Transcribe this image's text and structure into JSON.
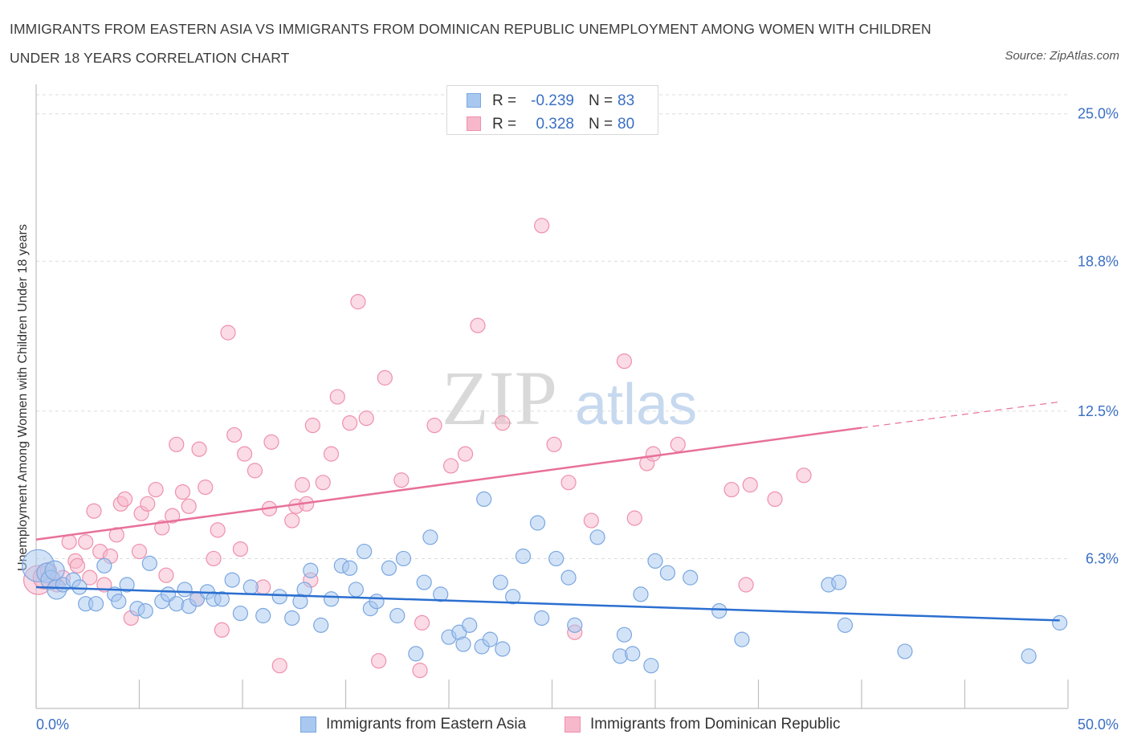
{
  "title": "IMMIGRANTS FROM EASTERN ASIA VS IMMIGRANTS FROM DOMINICAN REPUBLIC UNEMPLOYMENT AMONG WOMEN WITH CHILDREN UNDER 18 YEARS CORRELATION CHART",
  "source": "Source: ZipAtlas.com",
  "watermark": {
    "part1": "ZIP",
    "part2": "atlas"
  },
  "legend": {
    "r_label": "R =",
    "n_label": "N =",
    "rows": [
      {
        "r": "-0.239",
        "n": "83",
        "color": "#a8c8f0"
      },
      {
        "r": "0.328",
        "n": "80",
        "color": "#f7b8cb"
      }
    ]
  },
  "colors": {
    "blue_fill": "#a8c8f0",
    "blue_stroke": "#7aa7e0",
    "blue_line": "#2b6fd0",
    "pink_fill": "#f7b8cb",
    "pink_stroke": "#ef90ad",
    "pink_line": "#e8709a",
    "tick_text": "#3a6fc4"
  },
  "chart_data": {
    "type": "scatter",
    "title": "IMMIGRANTS FROM EASTERN ASIA VS IMMIGRANTS FROM DOMINICAN REPUBLIC UNEMPLOYMENT AMONG WOMEN WITH CHILDREN UNDER 18 YEARS CORRELATION CHART",
    "xlabel": "",
    "ylabel": "Unemployment Among Women with Children Under 18 years",
    "xlim": [
      0,
      50
    ],
    "ylim": [
      0,
      25.8
    ],
    "x_tick_labels": [
      "0.0%",
      "50.0%"
    ],
    "y_ticks": [
      {
        "value": 6.3,
        "label": "6.3%"
      },
      {
        "value": 12.5,
        "label": "12.5%"
      },
      {
        "value": 18.8,
        "label": "18.8%"
      },
      {
        "value": 25.0,
        "label": "25.0%"
      }
    ],
    "grid": "horizontal dashed",
    "legend_position": "top-center",
    "series": [
      {
        "name": "Immigrants from Eastern Asia",
        "R": -0.239,
        "N": 83,
        "trend": {
          "x": [
            0,
            49.6
          ],
          "y": [
            5.1,
            3.7
          ]
        },
        "points": [
          [
            0.1,
            6.0
          ],
          [
            0.5,
            5.7
          ],
          [
            0.7,
            5.4
          ],
          [
            0.9,
            5.8
          ],
          [
            1.0,
            5.0
          ],
          [
            1.3,
            5.2
          ],
          [
            1.8,
            5.4
          ],
          [
            2.1,
            5.1
          ],
          [
            2.4,
            4.4
          ],
          [
            2.9,
            4.4
          ],
          [
            3.3,
            6.0
          ],
          [
            3.8,
            4.8
          ],
          [
            4.0,
            4.5
          ],
          [
            4.4,
            5.2
          ],
          [
            4.9,
            4.2
          ],
          [
            5.3,
            4.1
          ],
          [
            5.5,
            6.1
          ],
          [
            6.1,
            4.5
          ],
          [
            6.4,
            4.8
          ],
          [
            6.8,
            4.4
          ],
          [
            7.2,
            5.0
          ],
          [
            7.4,
            4.3
          ],
          [
            7.8,
            4.6
          ],
          [
            8.3,
            4.9
          ],
          [
            8.6,
            4.6
          ],
          [
            9.0,
            4.6
          ],
          [
            9.5,
            5.4
          ],
          [
            9.9,
            4.0
          ],
          [
            10.4,
            5.1
          ],
          [
            11.0,
            3.9
          ],
          [
            11.8,
            4.7
          ],
          [
            12.4,
            3.8
          ],
          [
            12.8,
            4.5
          ],
          [
            13.0,
            5.0
          ],
          [
            13.3,
            5.8
          ],
          [
            13.8,
            3.5
          ],
          [
            14.3,
            4.6
          ],
          [
            14.8,
            6.0
          ],
          [
            15.2,
            5.9
          ],
          [
            15.5,
            5.0
          ],
          [
            15.9,
            6.6
          ],
          [
            16.2,
            4.2
          ],
          [
            16.5,
            4.5
          ],
          [
            17.1,
            5.9
          ],
          [
            17.5,
            3.9
          ],
          [
            17.8,
            6.3
          ],
          [
            18.4,
            2.3
          ],
          [
            18.8,
            5.3
          ],
          [
            19.1,
            7.2
          ],
          [
            19.6,
            4.8
          ],
          [
            20.0,
            3.0
          ],
          [
            20.5,
            3.2
          ],
          [
            20.7,
            2.7
          ],
          [
            21.0,
            3.5
          ],
          [
            21.6,
            2.6
          ],
          [
            22.0,
            2.9
          ],
          [
            22.5,
            5.3
          ],
          [
            22.6,
            2.5
          ],
          [
            23.1,
            4.7
          ],
          [
            23.6,
            6.4
          ],
          [
            24.3,
            7.8
          ],
          [
            24.5,
            3.8
          ],
          [
            25.2,
            6.3
          ],
          [
            25.8,
            5.5
          ],
          [
            26.1,
            3.5
          ],
          [
            27.2,
            7.2
          ],
          [
            28.3,
            2.2
          ],
          [
            28.5,
            3.1
          ],
          [
            28.9,
            2.3
          ],
          [
            29.3,
            4.8
          ],
          [
            29.8,
            1.8
          ],
          [
            30.0,
            6.2
          ],
          [
            30.6,
            5.7
          ],
          [
            31.7,
            5.5
          ],
          [
            33.1,
            4.1
          ],
          [
            34.2,
            2.9
          ],
          [
            38.4,
            5.2
          ],
          [
            38.9,
            5.3
          ],
          [
            39.2,
            3.5
          ],
          [
            42.1,
            2.4
          ],
          [
            48.1,
            2.2
          ],
          [
            49.6,
            3.6
          ],
          [
            21.7,
            8.8
          ]
        ],
        "radii": [
          20,
          12,
          12,
          12,
          12,
          9,
          9,
          9,
          9,
          9,
          9,
          9,
          9,
          9,
          9,
          9,
          9,
          9,
          9,
          9,
          9,
          9,
          9,
          9,
          9,
          9,
          9,
          9,
          9,
          9,
          9,
          9,
          9,
          9,
          9,
          9,
          9,
          9,
          9,
          9,
          9,
          9,
          9,
          9,
          9,
          9,
          9,
          9,
          9,
          9,
          9,
          9,
          9,
          9,
          9,
          9,
          9,
          9,
          9,
          9,
          9,
          9,
          9,
          9,
          9,
          9,
          9,
          9,
          9,
          9,
          9,
          9,
          9,
          9,
          9,
          9,
          9,
          9,
          9,
          9,
          9,
          9,
          9
        ]
      },
      {
        "name": "Immigrants from Dominican Republic",
        "R": 0.328,
        "N": 80,
        "trend": {
          "x": [
            0,
            40
          ],
          "y": [
            7.1,
            11.8
          ],
          "dashed_to": {
            "x": 49.7,
            "y": 12.9
          }
        },
        "points": [
          [
            0.1,
            5.4
          ],
          [
            0.4,
            5.5
          ],
          [
            0.6,
            5.8
          ],
          [
            1.0,
            5.2
          ],
          [
            1.3,
            5.5
          ],
          [
            1.6,
            7.0
          ],
          [
            1.9,
            6.2
          ],
          [
            2.0,
            6.0
          ],
          [
            2.4,
            7.0
          ],
          [
            2.6,
            5.5
          ],
          [
            2.8,
            8.3
          ],
          [
            3.1,
            6.6
          ],
          [
            3.3,
            5.2
          ],
          [
            3.6,
            6.4
          ],
          [
            3.9,
            7.3
          ],
          [
            4.1,
            8.6
          ],
          [
            4.3,
            8.8
          ],
          [
            4.6,
            3.8
          ],
          [
            5.0,
            6.6
          ],
          [
            5.1,
            8.2
          ],
          [
            5.4,
            8.6
          ],
          [
            5.8,
            9.2
          ],
          [
            6.1,
            7.6
          ],
          [
            6.3,
            5.6
          ],
          [
            6.6,
            8.1
          ],
          [
            6.8,
            11.1
          ],
          [
            7.1,
            9.1
          ],
          [
            7.4,
            8.5
          ],
          [
            7.8,
            4.6
          ],
          [
            7.9,
            10.9
          ],
          [
            8.2,
            9.3
          ],
          [
            8.6,
            6.3
          ],
          [
            8.8,
            7.5
          ],
          [
            9.0,
            3.3
          ],
          [
            9.3,
            15.8
          ],
          [
            9.6,
            11.5
          ],
          [
            9.9,
            6.7
          ],
          [
            10.1,
            10.7
          ],
          [
            10.6,
            10.0
          ],
          [
            11.0,
            5.1
          ],
          [
            11.3,
            8.4
          ],
          [
            11.4,
            11.2
          ],
          [
            11.8,
            1.8
          ],
          [
            12.4,
            7.9
          ],
          [
            12.6,
            8.5
          ],
          [
            12.9,
            9.4
          ],
          [
            13.1,
            8.6
          ],
          [
            13.3,
            5.4
          ],
          [
            13.4,
            11.9
          ],
          [
            13.9,
            9.5
          ],
          [
            14.3,
            10.7
          ],
          [
            14.6,
            13.1
          ],
          [
            15.2,
            12.0
          ],
          [
            15.6,
            17.1
          ],
          [
            16.0,
            12.2
          ],
          [
            16.6,
            2.0
          ],
          [
            16.9,
            13.9
          ],
          [
            17.7,
            9.6
          ],
          [
            18.6,
            1.6
          ],
          [
            18.7,
            3.6
          ],
          [
            19.3,
            11.9
          ],
          [
            20.1,
            10.2
          ],
          [
            20.8,
            10.7
          ],
          [
            21.4,
            16.1
          ],
          [
            22.6,
            12.0
          ],
          [
            24.5,
            20.3
          ],
          [
            25.1,
            11.1
          ],
          [
            25.8,
            9.5
          ],
          [
            26.1,
            3.2
          ],
          [
            26.9,
            7.9
          ],
          [
            28.5,
            14.6
          ],
          [
            29.0,
            8.0
          ],
          [
            29.6,
            10.3
          ],
          [
            29.9,
            10.7
          ],
          [
            31.1,
            11.1
          ],
          [
            33.7,
            9.2
          ],
          [
            34.4,
            5.2
          ],
          [
            34.6,
            9.4
          ],
          [
            35.8,
            8.8
          ],
          [
            37.2,
            9.8
          ]
        ],
        "radii": [
          18,
          14,
          10,
          9,
          9,
          9,
          9,
          9,
          9,
          9,
          9,
          9,
          9,
          9,
          9,
          9,
          9,
          9,
          9,
          9,
          9,
          9,
          9,
          9,
          9,
          9,
          9,
          9,
          9,
          9,
          9,
          9,
          9,
          9,
          9,
          9,
          9,
          9,
          9,
          9,
          9,
          9,
          9,
          9,
          9,
          9,
          9,
          9,
          9,
          9,
          9,
          9,
          9,
          9,
          9,
          9,
          9,
          9,
          9,
          9,
          9,
          9,
          9,
          9,
          9,
          9,
          9,
          9,
          9,
          9,
          9,
          9,
          9,
          9,
          9,
          9,
          9,
          9,
          9,
          9
        ]
      }
    ]
  }
}
